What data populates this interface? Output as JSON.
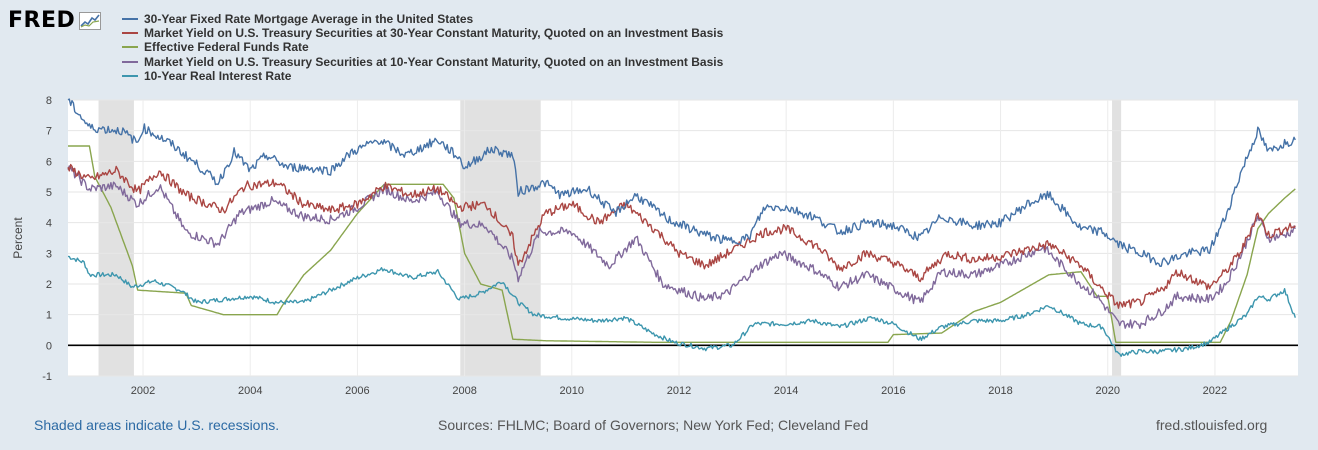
{
  "logo": {
    "text": "FRED"
  },
  "footer": {
    "recession_note": "Shaded areas indicate U.S. recessions.",
    "sources": "Sources: FHLMC; Board of Governors; New York Fed; Cleveland Fed",
    "site": "fred.stlouisfed.org"
  },
  "chart_data": {
    "type": "line",
    "ylabel": "Percent",
    "xlabel": "",
    "ylim": [
      -1,
      8
    ],
    "xlim": [
      2000.6,
      2023.55
    ],
    "yticks": [
      "-1",
      "0",
      "1",
      "2",
      "3",
      "4",
      "5",
      "6",
      "7",
      "8"
    ],
    "xticks": [
      "2002",
      "2004",
      "2006",
      "2008",
      "2010",
      "2012",
      "2014",
      "2016",
      "2018",
      "2020",
      "2022"
    ],
    "grid": true,
    "legend_position": "top-left",
    "recessions": [
      [
        2001.17,
        2001.83
      ],
      [
        2007.92,
        2009.42
      ],
      [
        2020.08,
        2020.25
      ]
    ],
    "series": [
      {
        "name": "30-Year Fixed Rate Mortgage Average in the United States",
        "color": "#4572a7",
        "points": [
          [
            2000.6,
            8.0
          ],
          [
            2001.0,
            7.1
          ],
          [
            2001.6,
            7.0
          ],
          [
            2001.9,
            6.6
          ],
          [
            2002.0,
            7.1
          ],
          [
            2002.5,
            6.6
          ],
          [
            2003.0,
            5.9
          ],
          [
            2003.4,
            5.3
          ],
          [
            2003.7,
            6.3
          ],
          [
            2004.0,
            5.7
          ],
          [
            2004.3,
            6.2
          ],
          [
            2004.7,
            5.8
          ],
          [
            2005.0,
            5.8
          ],
          [
            2005.5,
            5.7
          ],
          [
            2005.9,
            6.3
          ],
          [
            2006.4,
            6.7
          ],
          [
            2006.9,
            6.2
          ],
          [
            2007.5,
            6.7
          ],
          [
            2007.9,
            6.1
          ],
          [
            2008.0,
            5.8
          ],
          [
            2008.5,
            6.4
          ],
          [
            2008.9,
            6.2
          ],
          [
            2009.0,
            5.0
          ],
          [
            2009.5,
            5.3
          ],
          [
            2009.8,
            4.9
          ],
          [
            2010.3,
            5.1
          ],
          [
            2010.8,
            4.3
          ],
          [
            2011.2,
            4.9
          ],
          [
            2011.8,
            4.1
          ],
          [
            2012.5,
            3.6
          ],
          [
            2012.9,
            3.4
          ],
          [
            2013.3,
            3.5
          ],
          [
            2013.6,
            4.5
          ],
          [
            2014.0,
            4.5
          ],
          [
            2014.5,
            4.2
          ],
          [
            2015.0,
            3.7
          ],
          [
            2015.5,
            4.0
          ],
          [
            2016.0,
            3.9
          ],
          [
            2016.5,
            3.5
          ],
          [
            2016.9,
            4.2
          ],
          [
            2017.5,
            3.9
          ],
          [
            2018.0,
            4.0
          ],
          [
            2018.5,
            4.6
          ],
          [
            2018.9,
            4.9
          ],
          [
            2019.5,
            3.8
          ],
          [
            2019.9,
            3.7
          ],
          [
            2020.2,
            3.3
          ],
          [
            2020.6,
            3.0
          ],
          [
            2021.0,
            2.7
          ],
          [
            2021.5,
            3.0
          ],
          [
            2021.9,
            3.1
          ],
          [
            2022.2,
            4.2
          ],
          [
            2022.5,
            5.7
          ],
          [
            2022.8,
            7.0
          ],
          [
            2023.0,
            6.3
          ],
          [
            2023.3,
            6.6
          ],
          [
            2023.5,
            6.7
          ]
        ]
      },
      {
        "name": "Market Yield on U.S. Treasury Securities at 30-Year Constant Maturity, Quoted on an Investment Basis",
        "color": "#aa4643",
        "points": [
          [
            2000.6,
            5.8
          ],
          [
            2001.0,
            5.4
          ],
          [
            2001.5,
            5.7
          ],
          [
            2001.9,
            5.0
          ],
          [
            2002.3,
            5.7
          ],
          [
            2002.8,
            4.9
          ],
          [
            2003.5,
            4.4
          ],
          [
            2003.9,
            5.2
          ],
          [
            2004.5,
            5.3
          ],
          [
            2005.0,
            4.6
          ],
          [
            2005.5,
            4.4
          ],
          [
            2006.0,
            4.6
          ],
          [
            2006.5,
            5.2
          ],
          [
            2007.0,
            4.9
          ],
          [
            2007.5,
            5.1
          ],
          [
            2007.9,
            4.5
          ],
          [
            2008.4,
            4.6
          ],
          [
            2008.9,
            3.5
          ],
          [
            2009.0,
            2.6
          ],
          [
            2009.5,
            4.3
          ],
          [
            2010.0,
            4.6
          ],
          [
            2010.5,
            4.0
          ],
          [
            2011.0,
            4.6
          ],
          [
            2011.6,
            3.7
          ],
          [
            2012.0,
            3.0
          ],
          [
            2012.5,
            2.6
          ],
          [
            2013.0,
            3.1
          ],
          [
            2013.6,
            3.7
          ],
          [
            2014.0,
            3.8
          ],
          [
            2014.6,
            3.2
          ],
          [
            2015.0,
            2.5
          ],
          [
            2015.5,
            3.0
          ],
          [
            2016.0,
            2.7
          ],
          [
            2016.5,
            2.2
          ],
          [
            2017.0,
            3.0
          ],
          [
            2017.5,
            2.8
          ],
          [
            2018.0,
            2.9
          ],
          [
            2018.9,
            3.3
          ],
          [
            2019.5,
            2.6
          ],
          [
            2019.8,
            2.0
          ],
          [
            2020.2,
            1.3
          ],
          [
            2020.6,
            1.4
          ],
          [
            2021.0,
            1.8
          ],
          [
            2021.3,
            2.4
          ],
          [
            2021.9,
            1.9
          ],
          [
            2022.2,
            2.4
          ],
          [
            2022.5,
            3.1
          ],
          [
            2022.8,
            4.3
          ],
          [
            2023.0,
            3.6
          ],
          [
            2023.3,
            3.8
          ],
          [
            2023.5,
            3.9
          ]
        ]
      },
      {
        "name": "Effective Federal Funds Rate",
        "color": "#89a54e",
        "points": [
          [
            2000.6,
            6.5
          ],
          [
            2001.0,
            6.5
          ],
          [
            2001.1,
            5.5
          ],
          [
            2001.4,
            4.5
          ],
          [
            2001.8,
            2.6
          ],
          [
            2001.9,
            1.8
          ],
          [
            2002.8,
            1.7
          ],
          [
            2002.9,
            1.3
          ],
          [
            2003.5,
            1.0
          ],
          [
            2004.5,
            1.0
          ],
          [
            2004.6,
            1.3
          ],
          [
            2005.0,
            2.3
          ],
          [
            2005.5,
            3.1
          ],
          [
            2006.0,
            4.3
          ],
          [
            2006.5,
            5.25
          ],
          [
            2007.6,
            5.25
          ],
          [
            2007.8,
            4.8
          ],
          [
            2008.0,
            3.0
          ],
          [
            2008.3,
            2.0
          ],
          [
            2008.7,
            1.8
          ],
          [
            2008.9,
            0.2
          ],
          [
            2009.5,
            0.15
          ],
          [
            2011.5,
            0.1
          ],
          [
            2015.9,
            0.1
          ],
          [
            2016.0,
            0.35
          ],
          [
            2016.9,
            0.4
          ],
          [
            2017.5,
            1.1
          ],
          [
            2018.0,
            1.4
          ],
          [
            2018.5,
            1.9
          ],
          [
            2018.9,
            2.3
          ],
          [
            2019.5,
            2.4
          ],
          [
            2019.8,
            1.6
          ],
          [
            2020.0,
            1.6
          ],
          [
            2020.15,
            0.1
          ],
          [
            2022.1,
            0.1
          ],
          [
            2022.3,
            0.8
          ],
          [
            2022.6,
            2.3
          ],
          [
            2022.8,
            3.8
          ],
          [
            2023.0,
            4.3
          ],
          [
            2023.3,
            4.8
          ],
          [
            2023.5,
            5.1
          ]
        ]
      },
      {
        "name": "Market Yield on U.S. Treasury Securities at 10-Year Constant Maturity, Quoted on an Investment Basis",
        "color": "#80699b",
        "points": [
          [
            2000.6,
            5.8
          ],
          [
            2001.0,
            5.1
          ],
          [
            2001.5,
            5.2
          ],
          [
            2001.9,
            4.6
          ],
          [
            2002.3,
            5.2
          ],
          [
            2002.8,
            3.7
          ],
          [
            2003.4,
            3.3
          ],
          [
            2003.8,
            4.3
          ],
          [
            2004.4,
            4.7
          ],
          [
            2005.0,
            4.2
          ],
          [
            2005.5,
            4.1
          ],
          [
            2006.0,
            4.5
          ],
          [
            2006.5,
            5.1
          ],
          [
            2007.0,
            4.7
          ],
          [
            2007.5,
            5.0
          ],
          [
            2007.9,
            4.0
          ],
          [
            2008.4,
            3.9
          ],
          [
            2008.9,
            2.8
          ],
          [
            2009.0,
            2.2
          ],
          [
            2009.4,
            3.7
          ],
          [
            2010.0,
            3.7
          ],
          [
            2010.7,
            2.6
          ],
          [
            2011.2,
            3.5
          ],
          [
            2011.7,
            2.0
          ],
          [
            2012.5,
            1.5
          ],
          [
            2012.9,
            1.7
          ],
          [
            2013.5,
            2.6
          ],
          [
            2013.9,
            3.0
          ],
          [
            2014.5,
            2.5
          ],
          [
            2015.0,
            1.9
          ],
          [
            2015.5,
            2.3
          ],
          [
            2016.5,
            1.4
          ],
          [
            2016.9,
            2.4
          ],
          [
            2017.5,
            2.3
          ],
          [
            2018.0,
            2.6
          ],
          [
            2018.8,
            3.2
          ],
          [
            2019.5,
            2.0
          ],
          [
            2019.8,
            1.6
          ],
          [
            2020.2,
            0.7
          ],
          [
            2020.6,
            0.7
          ],
          [
            2021.0,
            1.1
          ],
          [
            2021.3,
            1.6
          ],
          [
            2021.9,
            1.5
          ],
          [
            2022.2,
            2.0
          ],
          [
            2022.5,
            3.0
          ],
          [
            2022.8,
            4.2
          ],
          [
            2023.0,
            3.5
          ],
          [
            2023.3,
            3.6
          ],
          [
            2023.5,
            3.8
          ]
        ]
      },
      {
        "name": "10-Year Real Interest Rate",
        "color": "#3d96ae",
        "points": [
          [
            2000.6,
            2.9
          ],
          [
            2000.9,
            2.7
          ],
          [
            2001.0,
            2.3
          ],
          [
            2001.5,
            2.3
          ],
          [
            2001.8,
            1.9
          ],
          [
            2002.2,
            2.1
          ],
          [
            2002.7,
            1.8
          ],
          [
            2003.0,
            1.4
          ],
          [
            2003.5,
            1.5
          ],
          [
            2004.0,
            1.6
          ],
          [
            2004.5,
            1.4
          ],
          [
            2005.0,
            1.4
          ],
          [
            2005.5,
            1.8
          ],
          [
            2006.0,
            2.2
          ],
          [
            2006.5,
            2.5
          ],
          [
            2007.0,
            2.2
          ],
          [
            2007.5,
            2.4
          ],
          [
            2007.9,
            1.5
          ],
          [
            2008.3,
            1.7
          ],
          [
            2008.7,
            2.1
          ],
          [
            2009.0,
            1.4
          ],
          [
            2009.3,
            1.0
          ],
          [
            2009.8,
            0.9
          ],
          [
            2010.5,
            0.8
          ],
          [
            2011.0,
            0.9
          ],
          [
            2011.5,
            0.4
          ],
          [
            2011.9,
            0.1
          ],
          [
            2012.5,
            -0.1
          ],
          [
            2013.0,
            0.0
          ],
          [
            2013.4,
            0.7
          ],
          [
            2014.0,
            0.7
          ],
          [
            2014.5,
            0.8
          ],
          [
            2015.0,
            0.6
          ],
          [
            2015.6,
            0.9
          ],
          [
            2016.0,
            0.7
          ],
          [
            2016.5,
            0.2
          ],
          [
            2016.9,
            0.6
          ],
          [
            2017.5,
            0.8
          ],
          [
            2018.0,
            0.8
          ],
          [
            2018.5,
            1.0
          ],
          [
            2018.9,
            1.3
          ],
          [
            2019.5,
            0.7
          ],
          [
            2019.9,
            0.6
          ],
          [
            2020.2,
            -0.3
          ],
          [
            2020.6,
            -0.2
          ],
          [
            2021.0,
            -0.2
          ],
          [
            2021.5,
            -0.1
          ],
          [
            2021.9,
            0.1
          ],
          [
            2022.2,
            0.5
          ],
          [
            2022.6,
            1.0
          ],
          [
            2022.8,
            1.6
          ],
          [
            2023.0,
            1.5
          ],
          [
            2023.3,
            1.8
          ],
          [
            2023.5,
            0.9
          ]
        ]
      }
    ]
  }
}
